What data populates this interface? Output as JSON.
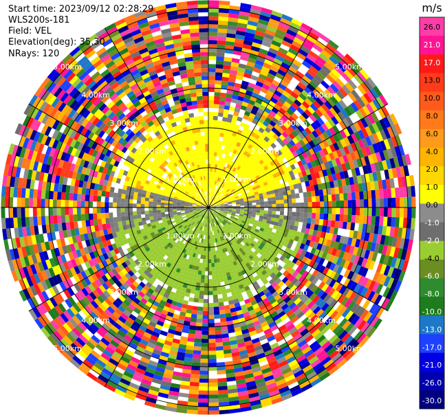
{
  "header": {
    "start_time": "Start time: 2023/09/12 02:28:29",
    "instrument": "WLS200s-181",
    "field": "Field: VEL",
    "elevation": "Elevation(deg): 35.30",
    "nrays": "NRays: 120"
  },
  "chart_data": {
    "type": "heatmap",
    "projection": "polar (PPI)",
    "field": "VEL",
    "nrays": 120,
    "elevation_deg": 35.3,
    "range_rings_km": [
      1.0,
      2.0,
      3.0,
      4.0,
      5.0
    ],
    "ring_labels": [
      "1.00km",
      "2.00km",
      "3.00km",
      "4.00km",
      "5.00km"
    ],
    "spokes_deg": [
      0,
      30,
      60,
      90,
      120,
      150,
      180,
      210,
      240,
      270,
      300,
      330
    ],
    "max_range_km": 5.2,
    "clean_range_km": 2.55,
    "pattern": "positive velocity (yellow/orange) to the north, negative velocity (green) to the south, grey near zero to east/west, noisy random values beyond ~2.5 km",
    "colorbar": {
      "unit": "m/s",
      "ticks": [
        "26.0",
        "21.0",
        "17.0",
        "13.0",
        "10.0",
        "8.0",
        "6.0",
        "4.0",
        "2.0",
        "1.0",
        "0.0",
        "-1.0",
        "-2.0",
        "-4.0",
        "-6.0",
        "-8.0",
        "-10.0",
        "-13.0",
        "-17.0",
        "-21.0",
        "-26.0",
        "-30.0"
      ],
      "colors": [
        "#ff3da8",
        "#ff1493",
        "#ff1a1a",
        "#ff3b1a",
        "#ff5a1a",
        "#ff7a1a",
        "#ff9a1a",
        "#ffb400",
        "#ffd700",
        "#ffff00",
        "#8c8c8c",
        "#6e6e6e",
        "#9acd32",
        "#6b8e23",
        "#2e8b2e",
        "#1e7b1e",
        "#1e78c8",
        "#1e40ff",
        "#0000e0",
        "#0000b0",
        "#000080"
      ]
    }
  }
}
